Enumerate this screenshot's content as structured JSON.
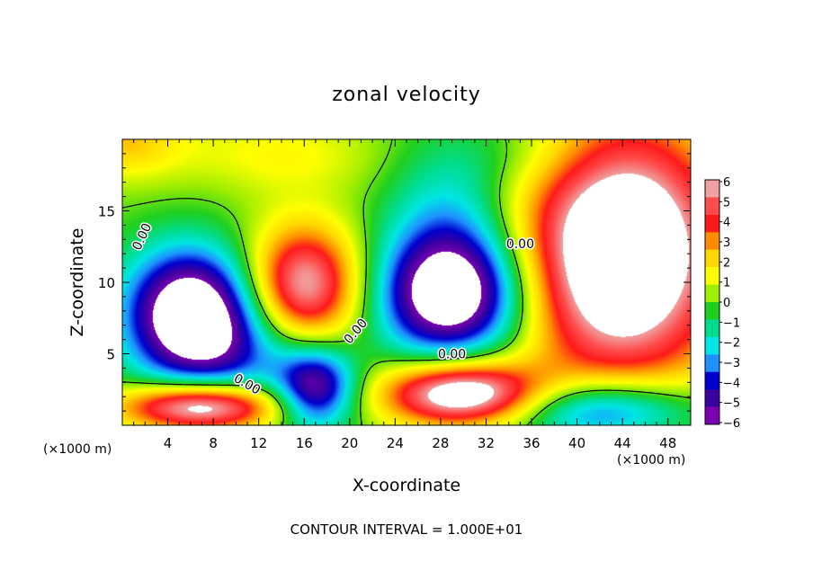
{
  "chart_data": {
    "type": "heatmap",
    "title": "zonal velocity",
    "xlabel": "X-coordinate",
    "ylabel": "Z-coordinate",
    "x_unit_left": "(×1000 m)",
    "x_unit_right": "(×1000 m)",
    "footer": "CONTOUR INTERVAL = 1.000E+01",
    "xlim": [
      0,
      50
    ],
    "ylim": [
      0,
      20
    ],
    "x_ticks": [
      4,
      8,
      12,
      16,
      20,
      24,
      28,
      32,
      36,
      40,
      44,
      48
    ],
    "y_ticks": [
      5,
      10,
      15
    ],
    "colorbar": {
      "range": [
        -6,
        6
      ],
      "tick_labels": [
        "6",
        "5",
        "4",
        "3",
        "2",
        "1",
        "0",
        "−1",
        "−2",
        "−3",
        "−4",
        "−5",
        "−6"
      ],
      "colors": [
        "#f0a0a0",
        "#ff4c4c",
        "#ff1a1a",
        "#ff8c00",
        "#ffd700",
        "#ffff00",
        "#a0ee00",
        "#20d020",
        "#00dd90",
        "#00e5e5",
        "#1e90ff",
        "#0000cd",
        "#3a00a0",
        "#7a00b0"
      ]
    },
    "contour_labels": [
      {
        "text": "0.00",
        "x": 1.7,
        "z": 13.2,
        "angle": -65
      },
      {
        "text": "0.00",
        "x": 20.5,
        "z": 6.6,
        "angle": -50
      },
      {
        "text": "0.00",
        "x": 11.0,
        "z": 2.9,
        "angle": 30
      },
      {
        "text": "0.00",
        "x": 29.0,
        "z": 5.0,
        "angle": 0
      },
      {
        "text": "0.00",
        "x": 35.0,
        "z": 12.7,
        "angle": 0
      }
    ],
    "features": [
      {
        "sign": "positive",
        "x": 0,
        "z": 20,
        "strength": 2.5,
        "sx": 4,
        "sz": 2
      },
      {
        "sign": "negative",
        "x": 6,
        "z": 8.2,
        "strength": 7.5,
        "sx": 4,
        "sz": 3
      },
      {
        "sign": "negative",
        "x": 9,
        "z": 5,
        "strength": 3,
        "sx": 5,
        "sz": 2.5
      },
      {
        "sign": "positive",
        "x": 7,
        "z": 1.3,
        "strength": 7.5,
        "sx": 5,
        "sz": 1.2
      },
      {
        "sign": "positive",
        "x": 16,
        "z": 9.8,
        "strength": 6.5,
        "sx": 3.5,
        "sz": 3
      },
      {
        "sign": "negative",
        "x": 17,
        "z": 2.6,
        "strength": 6,
        "sx": 2.5,
        "sz": 2
      },
      {
        "sign": "negative",
        "x": 29,
        "z": 9,
        "strength": 7.5,
        "sx": 4.5,
        "sz": 3
      },
      {
        "sign": "negative",
        "x": 29,
        "z": 14,
        "strength": 2.5,
        "sx": 4,
        "sz": 4
      },
      {
        "sign": "positive",
        "x": 30,
        "z": 2.2,
        "strength": 8,
        "sx": 5,
        "sz": 1.6
      },
      {
        "sign": "positive",
        "x": 44,
        "z": 12,
        "strength": 9,
        "sx": 6.5,
        "sz": 6.5
      },
      {
        "sign": "negative",
        "x": 42,
        "z": 1,
        "strength": 5,
        "sx": 6,
        "sz": 1.6
      },
      {
        "sign": "positive",
        "x": 14,
        "z": 19,
        "strength": 1.5,
        "sx": 6,
        "sz": 2
      },
      {
        "sign": "negative",
        "x": 36,
        "z": 19,
        "strength": 1.0,
        "sx": 5,
        "sz": 2
      }
    ]
  }
}
